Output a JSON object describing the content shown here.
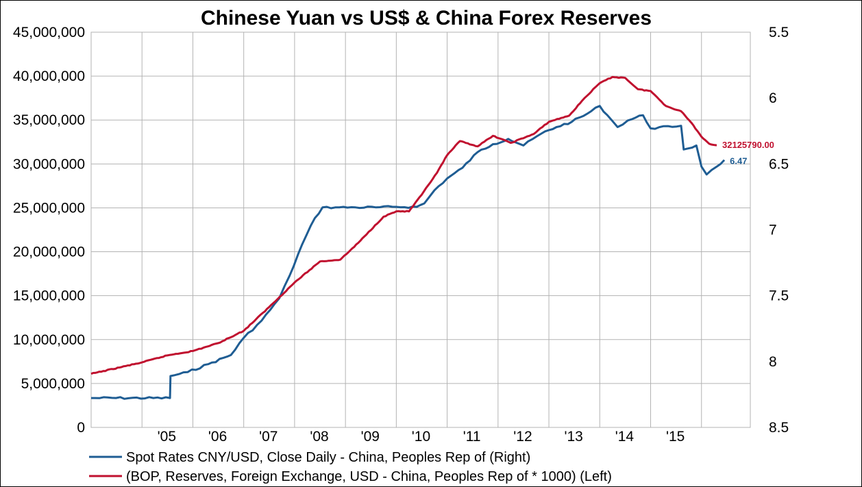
{
  "chart_data": {
    "type": "line",
    "title": "Chinese Yuan vs US$  & China Forex Reserves",
    "x_labels": [
      "'05",
      "'06",
      "'07",
      "'08",
      "'09",
      "'10",
      "'11",
      "'12",
      "'13",
      "'14",
      "'15"
    ],
    "y_left_ticks": [
      "45,000,000",
      "40,000,000",
      "35,000,000",
      "30,000,000",
      "25,000,000",
      "20,000,000",
      "15,000,000",
      "10,000,000",
      "5,000,000",
      "0"
    ],
    "y_right_ticks": [
      "5.5",
      "6",
      "6.5",
      "7",
      "7.5",
      "8",
      "8.5"
    ],
    "y_left_range": [
      0,
      45000000
    ],
    "y_right_range": [
      8.5,
      5.5
    ],
    "grid": true,
    "legend_position": "bottom",
    "series": [
      {
        "name": "Spot Rates CNY/USD, Close Daily - China, Peoples Rep of  (Right)",
        "axis": "right",
        "color": "#1f5d93",
        "end_label": "6.47",
        "points": [
          [
            2004.0,
            8.277
          ],
          [
            2005.55,
            8.277
          ],
          [
            2005.56,
            8.11
          ],
          [
            2005.9,
            8.08
          ],
          [
            2006.3,
            8.02
          ],
          [
            2006.75,
            7.95
          ],
          [
            2007.0,
            7.82
          ],
          [
            2007.35,
            7.69
          ],
          [
            2007.7,
            7.52
          ],
          [
            2007.9,
            7.35
          ],
          [
            2008.15,
            7.11
          ],
          [
            2008.4,
            6.91
          ],
          [
            2008.55,
            6.83
          ],
          [
            2008.8,
            6.83
          ],
          [
            2009.2,
            6.83
          ],
          [
            2009.6,
            6.83
          ],
          [
            2010.0,
            6.826
          ],
          [
            2010.4,
            6.826
          ],
          [
            2010.55,
            6.8
          ],
          [
            2010.75,
            6.7
          ],
          [
            2011.0,
            6.61
          ],
          [
            2011.3,
            6.53
          ],
          [
            2011.6,
            6.41
          ],
          [
            2011.9,
            6.35
          ],
          [
            2012.2,
            6.31
          ],
          [
            2012.5,
            6.36
          ],
          [
            2012.85,
            6.27
          ],
          [
            2013.15,
            6.22
          ],
          [
            2013.45,
            6.18
          ],
          [
            2013.75,
            6.12
          ],
          [
            2014.0,
            6.06
          ],
          [
            2014.15,
            6.13
          ],
          [
            2014.35,
            6.22
          ],
          [
            2014.55,
            6.17
          ],
          [
            2014.85,
            6.13
          ],
          [
            2015.0,
            6.23
          ],
          [
            2015.6,
            6.21
          ],
          [
            2015.65,
            6.39
          ],
          [
            2015.9,
            6.36
          ],
          [
            2016.0,
            6.52
          ],
          [
            2016.1,
            6.58
          ],
          [
            2016.3,
            6.52
          ],
          [
            2016.45,
            6.47
          ]
        ]
      },
      {
        "name": "(BOP, Reserves, Foreign Exchange, USD - China, Peoples Rep of * 1000)  (Left)",
        "axis": "left",
        "color": "#c0112f",
        "end_label": "32125790.00",
        "points": [
          [
            2004.0,
            6100000
          ],
          [
            2005.0,
            7400000
          ],
          [
            2005.5,
            8200000
          ],
          [
            2006.0,
            8700000
          ],
          [
            2006.5,
            9600000
          ],
          [
            2007.0,
            11000000
          ],
          [
            2007.5,
            13700000
          ],
          [
            2008.0,
            16500000
          ],
          [
            2008.5,
            18900000
          ],
          [
            2008.9,
            19100000
          ],
          [
            2009.25,
            21000000
          ],
          [
            2009.75,
            24000000
          ],
          [
            2010.0,
            24600000
          ],
          [
            2010.25,
            24600000
          ],
          [
            2010.5,
            26500000
          ],
          [
            2010.8,
            29000000
          ],
          [
            2011.0,
            31000000
          ],
          [
            2011.25,
            32600000
          ],
          [
            2011.6,
            32000000
          ],
          [
            2011.9,
            33200000
          ],
          [
            2012.25,
            32400000
          ],
          [
            2012.7,
            33400000
          ],
          [
            2013.0,
            34800000
          ],
          [
            2013.4,
            35500000
          ],
          [
            2013.7,
            37500000
          ],
          [
            2014.0,
            39200000
          ],
          [
            2014.25,
            39900000
          ],
          [
            2014.5,
            39800000
          ],
          [
            2014.75,
            38500000
          ],
          [
            2015.0,
            38300000
          ],
          [
            2015.3,
            36600000
          ],
          [
            2015.6,
            36000000
          ],
          [
            2015.8,
            34700000
          ],
          [
            2016.0,
            33100000
          ],
          [
            2016.15,
            32300000
          ],
          [
            2016.3,
            32125790
          ]
        ]
      }
    ]
  }
}
